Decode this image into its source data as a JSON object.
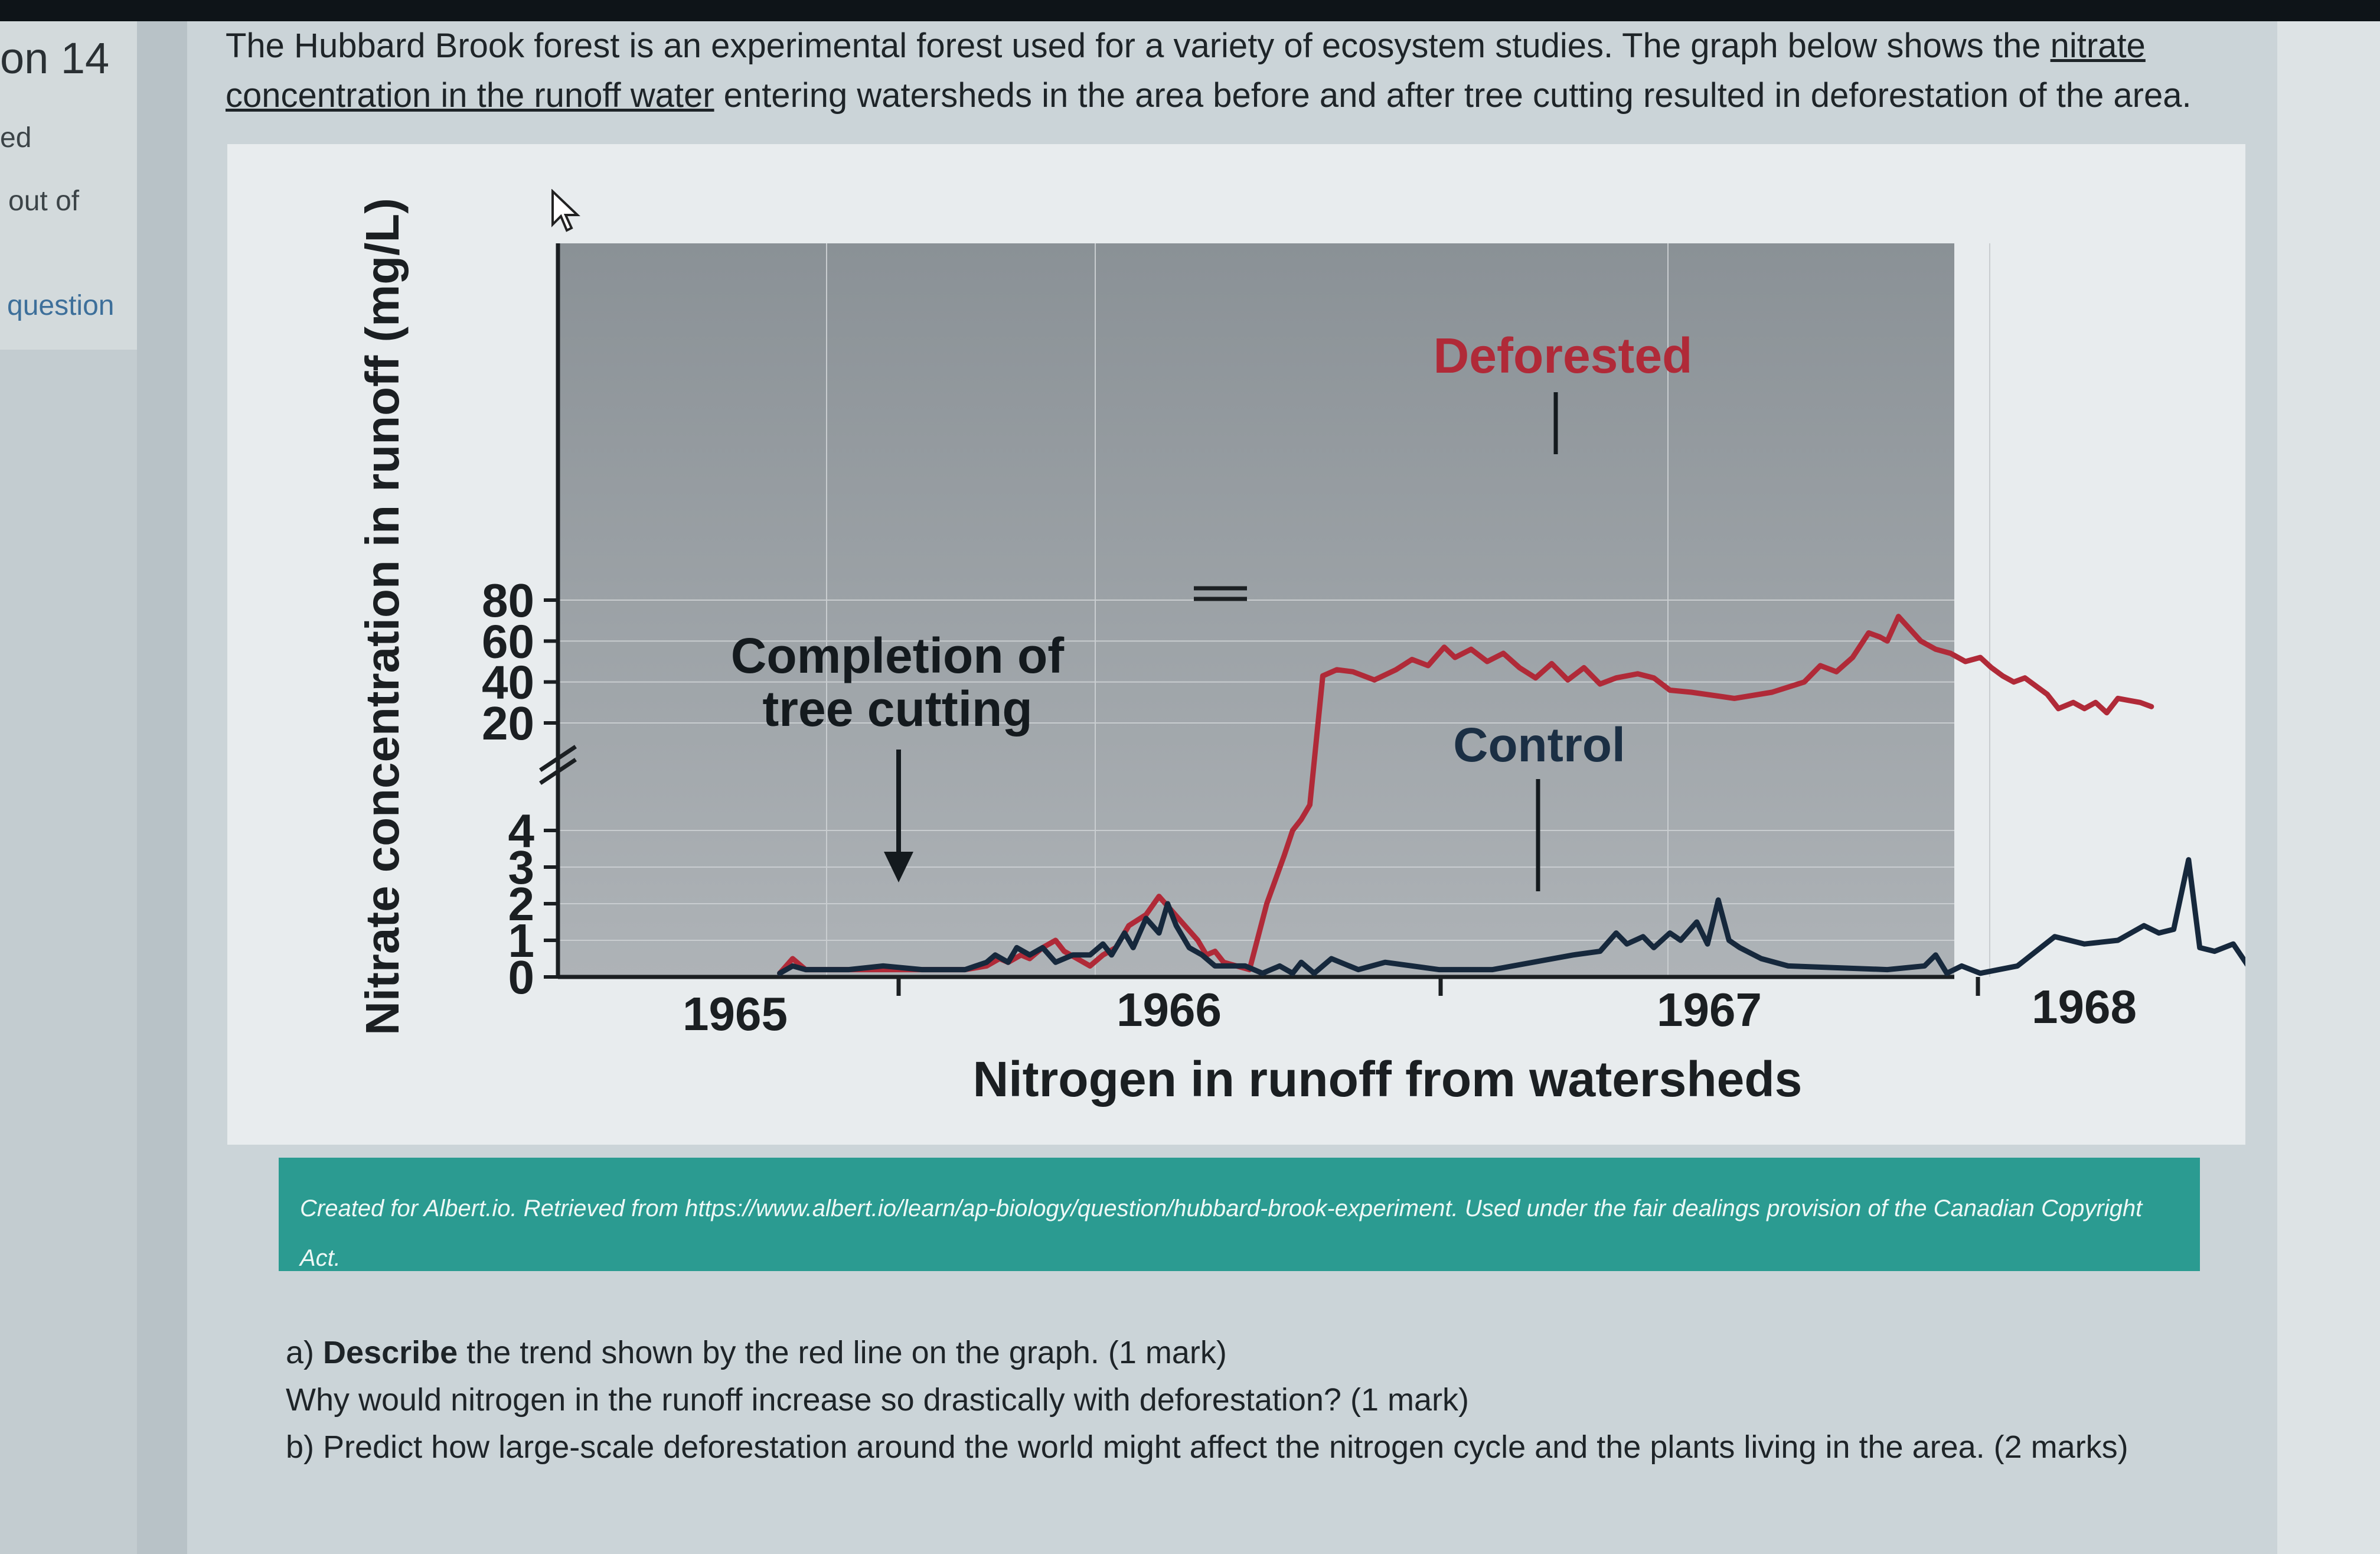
{
  "sidebar": {
    "question_number": "on 14",
    "lines": [
      "ed",
      "out of",
      "question"
    ]
  },
  "intro": {
    "text_before": "The Hubbard Brook forest is an experimental forest used for a variety of ecosystem studies. The graph below shows the ",
    "underlined": "nitrate concentration in the runoff water",
    "text_after": " entering watersheds in the area before and after tree cutting resulted in deforestation of the area."
  },
  "figure": {
    "caption": "Created for Albert.io. Retrieved from https://www.albert.io/learn/ap-biology/question/hubbard-brook-experiment. Used under the fair dealings provision of the Canadian Copyright Act."
  },
  "chart_data": {
    "type": "line",
    "title": "",
    "xlabel": "Nitrogen in runoff from watersheds",
    "ylabel": "Nitrate concentration in runoff (mg/L)",
    "x_ticks": [
      "1965",
      "1966",
      "1967",
      "1968"
    ],
    "y_ticks_lower": [
      0,
      1,
      2,
      3,
      4
    ],
    "y_ticks_upper": [
      20,
      40,
      60,
      80
    ],
    "xlim": [
      1964.7,
      1968.2
    ],
    "axis_break": "between 4 and 20 mg/L",
    "annotations": [
      {
        "text": "Completion of tree cutting",
        "x": 1965.3
      },
      {
        "text": "Deforested"
      },
      {
        "text": "Control"
      }
    ],
    "series": [
      {
        "name": "Deforested",
        "color": "#b02a38",
        "x": [
          1964.72,
          1964.75,
          1964.78,
          1964.9,
          1965.05,
          1965.15,
          1965.2,
          1965.23,
          1965.25,
          1965.28,
          1965.3,
          1965.33,
          1965.36,
          1965.38,
          1965.41,
          1965.44,
          1965.47,
          1965.5,
          1965.53,
          1965.57,
          1965.6,
          1965.63,
          1965.66,
          1965.69,
          1965.71,
          1965.73,
          1965.75,
          1965.78,
          1965.81,
          1965.85,
          1965.89,
          1965.91,
          1965.93,
          1965.95,
          1965.98,
          1966.01,
          1966.04,
          1966.08,
          1966.12,
          1966.15,
          1966.18,
          1966.21,
          1966.23,
          1966.26,
          1966.29,
          1966.32,
          1966.35,
          1966.38,
          1966.41,
          1966.44,
          1966.47,
          1966.5,
          1966.53,
          1966.57,
          1966.6,
          1966.63,
          1966.67,
          1966.75,
          1966.82,
          1966.88,
          1966.91,
          1966.94,
          1966.97,
          1967.0,
          1967.03,
          1967.05,
          1967.08,
          1967.11,
          1967.14,
          1967.18,
          1967.22,
          1967.26,
          1967.3,
          1967.33,
          1967.36,
          1967.39,
          1967.42,
          1967.45,
          1967.48,
          1967.51,
          1967.55,
          1967.58,
          1967.61,
          1967.64,
          1967.67,
          1967.7,
          1967.73,
          1967.76
        ],
        "values": [
          0.1,
          0.5,
          0.2,
          0.2,
          0.2,
          0.2,
          0.3,
          0.5,
          0.4,
          0.6,
          0.5,
          0.8,
          1.0,
          0.7,
          0.5,
          0.3,
          0.6,
          0.8,
          1.4,
          1.7,
          2.2,
          1.8,
          1.4,
          1.0,
          0.6,
          0.7,
          0.4,
          0.3,
          0.2,
          2.0,
          3.3,
          4.0,
          4.3,
          4.7,
          43,
          46,
          45,
          41,
          46,
          51,
          48,
          57,
          52,
          56,
          50,
          54,
          47,
          42,
          49,
          41,
          47,
          39,
          42,
          44,
          42,
          36,
          35,
          32,
          35,
          40,
          48,
          45,
          52,
          64,
          62,
          60,
          72,
          66,
          60,
          56,
          54,
          50,
          52,
          47,
          43,
          40,
          42,
          38,
          34,
          27,
          30,
          27,
          30,
          25,
          32,
          31,
          30,
          28
        ]
      },
      {
        "name": "Control",
        "color": "#16283c",
        "x": [
          1964.72,
          1964.75,
          1964.78,
          1964.88,
          1964.96,
          1965.05,
          1965.15,
          1965.2,
          1965.22,
          1965.25,
          1965.27,
          1965.3,
          1965.33,
          1965.36,
          1965.4,
          1965.44,
          1965.47,
          1965.49,
          1965.52,
          1965.54,
          1965.57,
          1965.6,
          1965.62,
          1965.64,
          1965.67,
          1965.7,
          1965.73,
          1965.75,
          1965.8,
          1965.84,
          1965.88,
          1965.91,
          1965.93,
          1965.96,
          1966.0,
          1966.05,
          1966.1,
          1966.2,
          1966.3,
          1966.45,
          1966.5,
          1966.53,
          1966.55,
          1966.58,
          1966.6,
          1966.63,
          1966.65,
          1966.68,
          1966.7,
          1966.72,
          1966.74,
          1966.76,
          1966.8,
          1966.85,
          1967.05,
          1967.15,
          1967.18,
          1967.21,
          1967.25,
          1967.3,
          1967.35,
          1967.4,
          1967.5,
          1967.58,
          1967.67,
          1967.74,
          1967.78,
          1967.82,
          1967.86,
          1967.89,
          1967.93,
          1967.98,
          1968.02,
          1968.08,
          1968.12,
          1968.18,
          1968.2
        ],
        "values": [
          0.1,
          0.3,
          0.2,
          0.2,
          0.3,
          0.2,
          0.2,
          0.4,
          0.6,
          0.4,
          0.8,
          0.6,
          0.8,
          0.4,
          0.6,
          0.6,
          0.9,
          0.6,
          1.2,
          0.8,
          1.6,
          1.2,
          2.0,
          1.4,
          0.8,
          0.6,
          0.3,
          0.3,
          0.3,
          0.1,
          0.3,
          0.1,
          0.4,
          0.1,
          0.5,
          0.2,
          0.4,
          0.2,
          0.2,
          0.6,
          0.7,
          1.2,
          0.9,
          1.1,
          0.8,
          1.2,
          1.0,
          1.5,
          0.9,
          2.1,
          1.0,
          0.8,
          0.5,
          0.3,
          0.2,
          0.3,
          0.6,
          0.1,
          0.3,
          0.1,
          0.2,
          0.3,
          1.1,
          0.9,
          1.0,
          1.4,
          1.2,
          1.3,
          3.2,
          0.8,
          0.7,
          0.9,
          0.3,
          1.1,
          1.2,
          0.7,
          1.0
        ]
      }
    ]
  },
  "questions": {
    "a_prefix": "a) ",
    "a_bold": "Describe",
    "a_rest": " the trend shown by the red line on the graph. (1 mark)",
    "a2": "Why would nitrogen in the runoff increase so drastically with deforestation?  (1 mark)",
    "b": "b) Predict how large-scale deforestation around the world might affect the nitrogen cycle and the plants living in the area. (2 marks)"
  }
}
